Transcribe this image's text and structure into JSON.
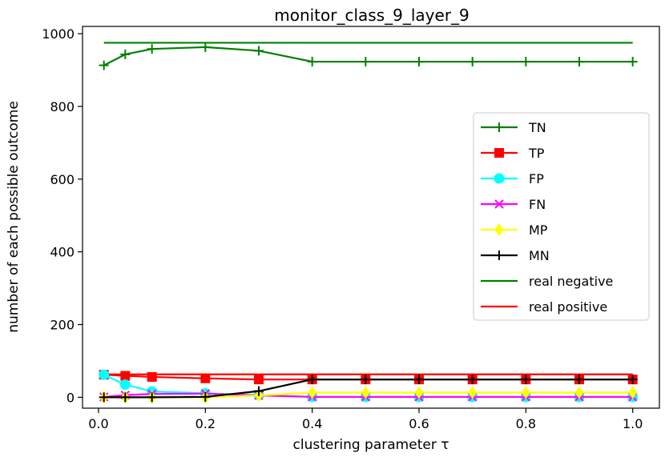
{
  "chart_data": {
    "type": "line",
    "title": "monitor_class_9_layer_9",
    "xlabel": "clustering parameter τ",
    "ylabel": "number of each possible outcome",
    "xlim": [
      -0.03,
      1.05
    ],
    "ylim": [
      -30,
      1020
    ],
    "x_ticks": [
      "0.0",
      "0.2",
      "0.4",
      "0.6",
      "0.8",
      "1.0"
    ],
    "y_ticks": [
      "0",
      "200",
      "400",
      "600",
      "800",
      "1000"
    ],
    "x": [
      0.01,
      0.05,
      0.1,
      0.2,
      0.3,
      0.4,
      0.5,
      0.6,
      0.7,
      0.8,
      0.9,
      1.0
    ],
    "legend_position": "right",
    "series": [
      {
        "name": "TN",
        "color": "#008000",
        "marker": "plus",
        "values": [
          913,
          943,
          958,
          963,
          953,
          923,
          923,
          923,
          923,
          923,
          923,
          923
        ]
      },
      {
        "name": "TP",
        "color": "#ff0000",
        "marker": "square",
        "values": [
          62,
          59,
          56,
          52,
          49,
          49,
          49,
          49,
          49,
          49,
          49,
          49
        ]
      },
      {
        "name": "FP",
        "color": "#00ffff",
        "marker": "circle",
        "values": [
          62,
          35,
          16,
          11,
          6,
          1,
          1,
          1,
          1,
          1,
          1,
          1
        ]
      },
      {
        "name": "FN",
        "color": "#ff00ff",
        "marker": "x",
        "values": [
          1,
          6,
          9,
          10,
          5,
          1,
          1,
          1,
          1,
          1,
          1,
          1
        ]
      },
      {
        "name": "MP",
        "color": "#ffff00",
        "marker": "diamond",
        "values": [
          0,
          0,
          0,
          0,
          5,
          13,
          13,
          13,
          13,
          13,
          13,
          13
        ]
      },
      {
        "name": "MN",
        "color": "#000000",
        "marker": "plus",
        "values": [
          0,
          0,
          0,
          1,
          17,
          49,
          49,
          49,
          49,
          49,
          49,
          49
        ]
      }
    ],
    "reference_lines": [
      {
        "name": "real negative",
        "color": "#008000",
        "value": 975
      },
      {
        "name": "real positive",
        "color": "#ff0000",
        "value": 63
      }
    ]
  }
}
